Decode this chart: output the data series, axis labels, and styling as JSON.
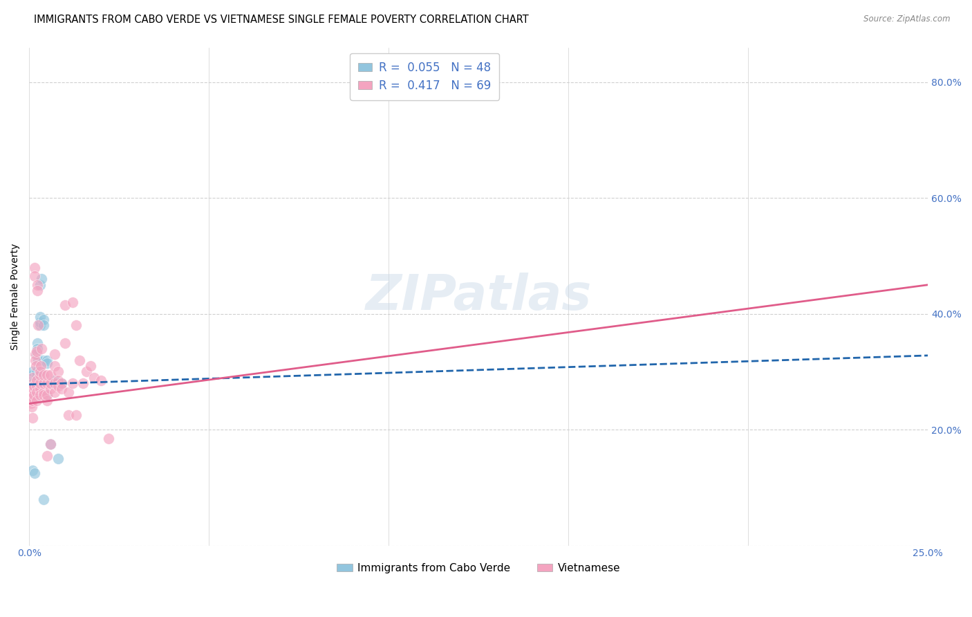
{
  "title": "IMMIGRANTS FROM CABO VERDE VS VIETNAMESE SINGLE FEMALE POVERTY CORRELATION CHART",
  "source": "Source: ZipAtlas.com",
  "ylabel": "Single Female Poverty",
  "watermark": "ZIPatlas",
  "cabo_R": 0.055,
  "cabo_N": 48,
  "viet_R": 0.417,
  "viet_N": 69,
  "cabo_color": "#92c5de",
  "cabo_line_color": "#2166ac",
  "viet_color": "#f4a4c0",
  "viet_line_color": "#e05c8a",
  "xlim": [
    0.0,
    0.25
  ],
  "ylim": [
    0.0,
    0.86
  ],
  "ytick_vals": [
    0.0,
    0.2,
    0.4,
    0.6,
    0.8
  ],
  "ytick_labels": [
    "",
    "20.0%",
    "40.0%",
    "60.0%",
    "80.0%"
  ],
  "xtick_vals": [
    0.0,
    0.05,
    0.1,
    0.15,
    0.2,
    0.25
  ],
  "xtick_labels": [
    "0.0%",
    "",
    "",
    "",
    "",
    "25.0%"
  ],
  "cabo_x": [
    0.0005,
    0.0006,
    0.0007,
    0.0008,
    0.0009,
    0.001,
    0.001,
    0.001,
    0.001,
    0.001,
    0.0012,
    0.0013,
    0.0014,
    0.0015,
    0.0015,
    0.0016,
    0.0017,
    0.0018,
    0.0018,
    0.002,
    0.002,
    0.002,
    0.002,
    0.002,
    0.002,
    0.0022,
    0.0023,
    0.0025,
    0.003,
    0.003,
    0.003,
    0.003,
    0.003,
    0.003,
    0.0035,
    0.004,
    0.004,
    0.004,
    0.004,
    0.005,
    0.005,
    0.005,
    0.006,
    0.006,
    0.007,
    0.007,
    0.008,
    0.009
  ],
  "cabo_y": [
    0.27,
    0.265,
    0.28,
    0.275,
    0.13,
    0.265,
    0.27,
    0.28,
    0.295,
    0.3,
    0.28,
    0.27,
    0.265,
    0.255,
    0.125,
    0.265,
    0.28,
    0.275,
    0.265,
    0.27,
    0.27,
    0.28,
    0.295,
    0.3,
    0.33,
    0.35,
    0.34,
    0.32,
    0.295,
    0.3,
    0.38,
    0.385,
    0.395,
    0.45,
    0.46,
    0.39,
    0.38,
    0.32,
    0.08,
    0.32,
    0.315,
    0.26,
    0.175,
    0.28,
    0.28,
    0.285,
    0.15,
    0.28
  ],
  "viet_x": [
    0.0005,
    0.0007,
    0.0008,
    0.0009,
    0.001,
    0.001,
    0.001,
    0.001,
    0.001,
    0.0012,
    0.0013,
    0.0014,
    0.0015,
    0.0015,
    0.0016,
    0.0017,
    0.0018,
    0.002,
    0.002,
    0.002,
    0.002,
    0.002,
    0.0022,
    0.0023,
    0.0025,
    0.003,
    0.003,
    0.003,
    0.003,
    0.003,
    0.0032,
    0.0035,
    0.004,
    0.004,
    0.004,
    0.004,
    0.005,
    0.005,
    0.005,
    0.005,
    0.005,
    0.006,
    0.006,
    0.006,
    0.006,
    0.007,
    0.007,
    0.007,
    0.007,
    0.008,
    0.008,
    0.008,
    0.009,
    0.009,
    0.01,
    0.01,
    0.011,
    0.011,
    0.012,
    0.012,
    0.013,
    0.013,
    0.014,
    0.015,
    0.016,
    0.017,
    0.018,
    0.02,
    0.022
  ],
  "viet_y": [
    0.245,
    0.24,
    0.265,
    0.22,
    0.265,
    0.25,
    0.255,
    0.275,
    0.29,
    0.27,
    0.26,
    0.275,
    0.48,
    0.465,
    0.33,
    0.32,
    0.31,
    0.275,
    0.265,
    0.25,
    0.285,
    0.335,
    0.45,
    0.44,
    0.38,
    0.27,
    0.26,
    0.28,
    0.295,
    0.3,
    0.31,
    0.34,
    0.265,
    0.28,
    0.295,
    0.26,
    0.25,
    0.26,
    0.28,
    0.295,
    0.155,
    0.175,
    0.27,
    0.28,
    0.295,
    0.265,
    0.28,
    0.31,
    0.33,
    0.3,
    0.285,
    0.275,
    0.28,
    0.27,
    0.415,
    0.35,
    0.265,
    0.225,
    0.42,
    0.28,
    0.38,
    0.225,
    0.32,
    0.28,
    0.3,
    0.31,
    0.29,
    0.285,
    0.185
  ],
  "cabo_line_intercept": 0.278,
  "cabo_line_slope": 0.2,
  "viet_line_intercept": 0.245,
  "viet_line_slope": 0.82
}
